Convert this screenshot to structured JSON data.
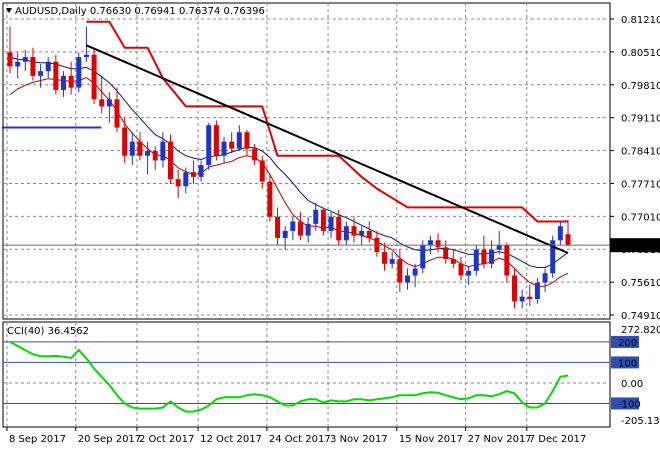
{
  "chart_data": [
    {
      "type": "candlestick",
      "header": {
        "symbol": "AUDUSD,Daily",
        "open": "0.76630",
        "high": "0.76941",
        "low": "0.76374",
        "close": "0.76396"
      },
      "current_price_label": "0.76396",
      "ylim": [
        0.7491,
        0.8121
      ],
      "y_ticks": [
        "0.81210",
        "0.80510",
        "0.79810",
        "0.79110",
        "0.78410",
        "0.77710",
        "0.77010",
        "0.76310",
        "0.75610",
        "0.74910"
      ],
      "x_ticks": [
        "8 Sep 2017",
        "20 Sep 2017",
        "2 Oct 2017",
        "12 Oct 2017",
        "24 Oct 2017",
        "3 Nov 2017",
        "15 Nov 2017",
        "27 Nov 2017",
        "7 Dec 2017"
      ],
      "grid": true,
      "colors": {
        "bull": "#1f35c8",
        "bear": "#e00000",
        "trendline": "#000000",
        "channel": "#e00000",
        "ma_slow": "#0b1a7a",
        "ma_fast": "#c00000",
        "support": "#1f35c8",
        "grid": "#8a8a8a"
      },
      "candles": [
        [
          0.805,
          0.8105,
          0.8005,
          0.802
        ],
        [
          0.802,
          0.805,
          0.7995,
          0.803
        ],
        [
          0.803,
          0.8055,
          0.801,
          0.804
        ],
        [
          0.804,
          0.806,
          0.799,
          0.8
        ],
        [
          0.8,
          0.8025,
          0.7975,
          0.801
        ],
        [
          0.801,
          0.804,
          0.7995,
          0.803
        ],
        [
          0.803,
          0.8045,
          0.796,
          0.797
        ],
        [
          0.797,
          0.801,
          0.7955,
          0.8
        ],
        [
          0.8,
          0.803,
          0.796,
          0.7975
        ],
        [
          0.7975,
          0.805,
          0.7965,
          0.804
        ],
        [
          0.804,
          0.8105,
          0.803,
          0.8045
        ],
        [
          0.8045,
          0.806,
          0.794,
          0.795
        ],
        [
          0.795,
          0.8,
          0.792,
          0.7935
        ],
        [
          0.7935,
          0.7965,
          0.79,
          0.795
        ],
        [
          0.795,
          0.7975,
          0.788,
          0.789
        ],
        [
          0.789,
          0.791,
          0.7815,
          0.783
        ],
        [
          0.783,
          0.788,
          0.781,
          0.786
        ],
        [
          0.786,
          0.788,
          0.782,
          0.783
        ],
        [
          0.783,
          0.786,
          0.779,
          0.784
        ],
        [
          0.784,
          0.785,
          0.78,
          0.782
        ],
        [
          0.782,
          0.788,
          0.7805,
          0.786
        ],
        [
          0.786,
          0.7875,
          0.777,
          0.778
        ],
        [
          0.778,
          0.78,
          0.774,
          0.7765
        ],
        [
          0.7765,
          0.7805,
          0.775,
          0.7795
        ],
        [
          0.7795,
          0.782,
          0.777,
          0.7785
        ],
        [
          0.7785,
          0.782,
          0.7775,
          0.781
        ],
        [
          0.781,
          0.79,
          0.78,
          0.7895
        ],
        [
          0.7895,
          0.7905,
          0.782,
          0.783
        ],
        [
          0.783,
          0.787,
          0.7815,
          0.786
        ],
        [
          0.786,
          0.788,
          0.7835,
          0.7845
        ],
        [
          0.7845,
          0.7895,
          0.784,
          0.788
        ],
        [
          0.788,
          0.7885,
          0.783,
          0.7845
        ],
        [
          0.7845,
          0.7855,
          0.781,
          0.782
        ],
        [
          0.782,
          0.783,
          0.776,
          0.7775
        ],
        [
          0.7775,
          0.779,
          0.769,
          0.77
        ],
        [
          0.77,
          0.772,
          0.764,
          0.7655
        ],
        [
          0.7655,
          0.768,
          0.763,
          0.767
        ],
        [
          0.767,
          0.77,
          0.765,
          0.769
        ],
        [
          0.769,
          0.771,
          0.765,
          0.766
        ],
        [
          0.766,
          0.77,
          0.7645,
          0.7685
        ],
        [
          0.7685,
          0.773,
          0.767,
          0.7715
        ],
        [
          0.7715,
          0.772,
          0.766,
          0.767
        ],
        [
          0.767,
          0.771,
          0.7655,
          0.77
        ],
        [
          0.77,
          0.7715,
          0.764,
          0.765
        ],
        [
          0.765,
          0.769,
          0.764,
          0.768
        ],
        [
          0.768,
          0.77,
          0.7645,
          0.766
        ],
        [
          0.766,
          0.768,
          0.764,
          0.767
        ],
        [
          0.767,
          0.769,
          0.7645,
          0.7655
        ],
        [
          0.7655,
          0.767,
          0.7615,
          0.7625
        ],
        [
          0.7625,
          0.7645,
          0.7585,
          0.76
        ],
        [
          0.76,
          0.7625,
          0.759,
          0.761
        ],
        [
          0.761,
          0.763,
          0.754,
          0.756
        ],
        [
          0.756,
          0.759,
          0.7545,
          0.7575
        ],
        [
          0.7575,
          0.76,
          0.755,
          0.759
        ],
        [
          0.759,
          0.765,
          0.758,
          0.764
        ],
        [
          0.764,
          0.766,
          0.762,
          0.765
        ],
        [
          0.765,
          0.7665,
          0.7625,
          0.7635
        ],
        [
          0.7635,
          0.765,
          0.76,
          0.761
        ],
        [
          0.761,
          0.763,
          0.759,
          0.76
        ],
        [
          0.76,
          0.7615,
          0.7565,
          0.7575
        ],
        [
          0.7575,
          0.7595,
          0.7555,
          0.7585
        ],
        [
          0.7585,
          0.764,
          0.7575,
          0.763
        ],
        [
          0.763,
          0.766,
          0.759,
          0.76
        ],
        [
          0.76,
          0.765,
          0.759,
          0.763
        ],
        [
          0.763,
          0.767,
          0.762,
          0.764
        ],
        [
          0.764,
          0.7645,
          0.756,
          0.7575
        ],
        [
          0.7575,
          0.759,
          0.7505,
          0.752
        ],
        [
          0.752,
          0.7545,
          0.7505,
          0.753
        ],
        [
          0.753,
          0.7555,
          0.751,
          0.7525
        ],
        [
          0.7525,
          0.757,
          0.7515,
          0.756
        ],
        [
          0.756,
          0.759,
          0.754,
          0.758
        ],
        [
          0.758,
          0.766,
          0.757,
          0.765
        ],
        [
          0.765,
          0.769,
          0.764,
          0.768
        ],
        [
          0.7663,
          0.7694,
          0.7637,
          0.764
        ]
      ],
      "overlays": {
        "ma_slow": [
          0.804,
          0.8035,
          0.8034,
          0.803,
          0.8028,
          0.8028,
          0.8025,
          0.802,
          0.8015,
          0.8015,
          0.8018,
          0.801,
          0.7998,
          0.7985,
          0.7968,
          0.7948,
          0.7928,
          0.791,
          0.7892,
          0.7875,
          0.7866,
          0.7855,
          0.784,
          0.783,
          0.7825,
          0.7822,
          0.7828,
          0.783,
          0.7832,
          0.7838,
          0.7843,
          0.7848,
          0.7847,
          0.784,
          0.7826,
          0.7806,
          0.779,
          0.7772,
          0.7752,
          0.7735,
          0.7726,
          0.7718,
          0.7712,
          0.7704,
          0.7698,
          0.769,
          0.7682,
          0.7674,
          0.7666,
          0.766,
          0.7655,
          0.7644,
          0.7636,
          0.763,
          0.7628,
          0.763,
          0.7632,
          0.7633,
          0.763,
          0.7625,
          0.762,
          0.762,
          0.7622,
          0.7623,
          0.7626,
          0.7622,
          0.7614,
          0.7605,
          0.7596,
          0.7592,
          0.7592,
          0.76,
          0.7612,
          0.7624
        ],
        "ma_fast": [
          0.796,
          0.7972,
          0.798,
          0.7986,
          0.799,
          0.7994,
          0.7992,
          0.799,
          0.7988,
          0.799,
          0.7996,
          0.7985,
          0.7966,
          0.7948,
          0.7925,
          0.7898,
          0.7878,
          0.786,
          0.7845,
          0.7832,
          0.783,
          0.782,
          0.7804,
          0.7796,
          0.779,
          0.7792,
          0.7806,
          0.781,
          0.7814,
          0.7818,
          0.7826,
          0.783,
          0.7826,
          0.7815,
          0.779,
          0.776,
          0.773,
          0.7705,
          0.769,
          0.768,
          0.768,
          0.7676,
          0.7678,
          0.767,
          0.7668,
          0.7665,
          0.766,
          0.7655,
          0.7648,
          0.7638,
          0.763,
          0.7612,
          0.76,
          0.7594,
          0.76,
          0.7608,
          0.7614,
          0.7614,
          0.761,
          0.76,
          0.7594,
          0.7598,
          0.76,
          0.7604,
          0.7612,
          0.7606,
          0.759,
          0.7574,
          0.756,
          0.7552,
          0.7552,
          0.756,
          0.7572,
          0.758
        ],
        "channel": [
          [
            10,
            0.8115
          ],
          [
            13,
            0.8115
          ],
          [
            15,
            0.806
          ],
          [
            18,
            0.806
          ],
          [
            20,
            0.7995
          ],
          [
            23,
            0.7935
          ],
          [
            33,
            0.7935
          ],
          [
            35,
            0.783
          ],
          [
            43,
            0.783
          ],
          [
            46,
            0.7785
          ],
          [
            48,
            0.776
          ],
          [
            52,
            0.772
          ],
          [
            60,
            0.772
          ],
          [
            67,
            0.772
          ],
          [
            69,
            0.769
          ],
          [
            73,
            0.769
          ]
        ],
        "trendline": [
          [
            10,
            0.8065
          ],
          [
            73,
            0.7623
          ]
        ],
        "support": [
          [
            0,
            0.789
          ],
          [
            13,
            0.789
          ]
        ]
      }
    },
    {
      "type": "line",
      "header": "CCI(40) 36.4562",
      "ylim": [
        -205.1327,
        272.8203
      ],
      "y_ticks": [
        "272.8203",
        "200",
        "100",
        "0.00",
        "-100",
        "-205.1327"
      ],
      "levels": [
        200,
        100,
        0,
        -100
      ],
      "color": "#00dc00",
      "values": [
        200,
        180,
        160,
        140,
        130,
        130,
        132,
        128,
        122,
        160,
        120,
        70,
        30,
        -10,
        -60,
        -100,
        -120,
        -125,
        -125,
        -125,
        -120,
        -90,
        -120,
        -140,
        -140,
        -130,
        -110,
        -80,
        -70,
        -70,
        -70,
        -60,
        -55,
        -60,
        -70,
        -90,
        -110,
        -110,
        -90,
        -80,
        -80,
        -95,
        -85,
        -90,
        -90,
        -80,
        -80,
        -85,
        -80,
        -75,
        -70,
        -60,
        -60,
        -60,
        -50,
        -45,
        -48,
        -60,
        -70,
        -80,
        -75,
        -60,
        -60,
        -65,
        -55,
        -40,
        -50,
        -95,
        -120,
        -120,
        -100,
        -40,
        30,
        36.4562
      ]
    }
  ]
}
